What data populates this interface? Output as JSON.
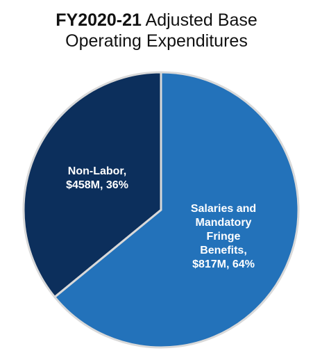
{
  "title": {
    "bold_part": "FY2020-21",
    "rest_line1": "Adjusted Base",
    "line2": "Operating Expenditures"
  },
  "chart_data": {
    "type": "pie",
    "title": "FY2020-21 Adjusted Base Operating Expenditures",
    "slices": [
      {
        "name": "Salaries and Mandatory Fringe Benefits",
        "value": 817,
        "unit": "$M",
        "percent": 64,
        "color": "#2372ba",
        "label_lines": [
          "Salaries and",
          "Mandatory",
          "Fringe",
          "Benefits,",
          "$817M, 64%"
        ]
      },
      {
        "name": "Non-Labor",
        "value": 458,
        "unit": "$M",
        "percent": 36,
        "color": "#0c2f5c",
        "label_lines": [
          "Non-Labor,",
          "$458M, 36%"
        ]
      }
    ]
  }
}
